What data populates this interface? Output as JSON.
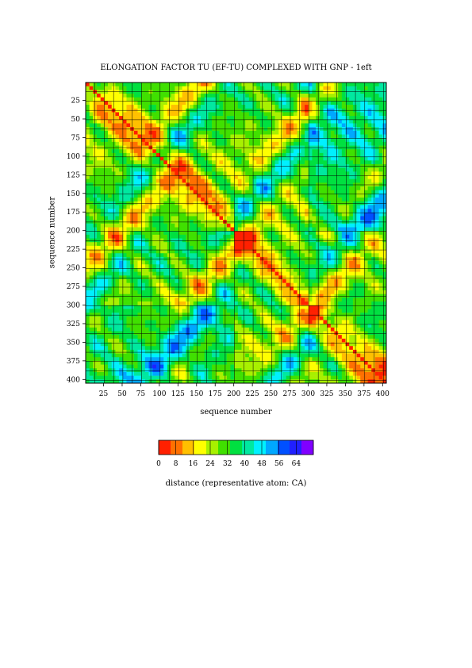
{
  "chart_data": {
    "type": "heatmap",
    "title": "ELONGATION FACTOR TU (EF-TU) COMPLEXED WITH  GNP - 1eft",
    "xlabel": "sequence number",
    "ylabel": "sequence number",
    "x_range": [
      1,
      405
    ],
    "y_range": [
      1,
      405
    ],
    "y_inverted": true,
    "x_ticks": [
      25,
      50,
      75,
      100,
      125,
      150,
      175,
      200,
      225,
      250,
      275,
      300,
      325,
      350,
      375,
      400
    ],
    "y_ticks": [
      25,
      50,
      75,
      100,
      125,
      150,
      175,
      200,
      225,
      250,
      275,
      300,
      325,
      350,
      375,
      400
    ],
    "grid": true,
    "colorbar": {
      "label": "distance (representative atom: CA)",
      "ticks": [
        0,
        8,
        16,
        24,
        32,
        40,
        48,
        56,
        64
      ],
      "range": [
        0,
        72
      ],
      "colors": [
        "#ff2000",
        "#ff7000",
        "#ffc000",
        "#ffff00",
        "#a8f000",
        "#40e000",
        "#00e040",
        "#00e8a0",
        "#00f0ff",
        "#00a8ff",
        "#0050ff",
        "#2020ff",
        "#8000ff"
      ]
    },
    "domain_boundaries": [
      200,
      300
    ],
    "matrix_value_description": "pairwise CA distance between residues i and j"
  }
}
